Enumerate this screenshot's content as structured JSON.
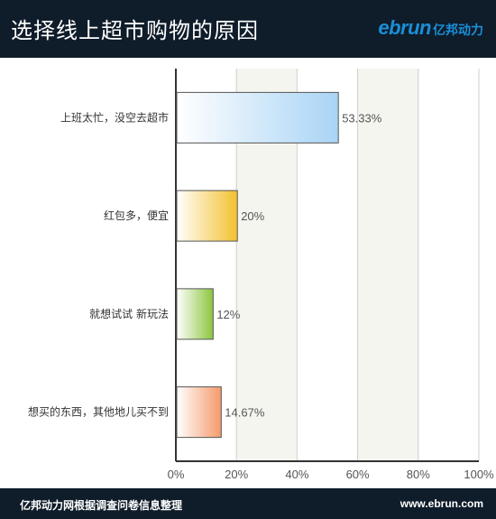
{
  "header": {
    "title": "选择线上超市购物的原因",
    "logo_word": "ebrun",
    "logo_cn": "亿邦动力"
  },
  "footer": {
    "note": "亿邦动力网根据调查问卷信息整理",
    "site": "www.ebrun.com"
  },
  "chart_data": {
    "type": "bar",
    "orientation": "horizontal",
    "title": "选择线上超市购物的原因",
    "categories": [
      "上班太忙，没空去超市",
      "红包多，便宜",
      "就想试试 新玩法",
      "想买的东西，其他地儿买不到"
    ],
    "values": [
      53.33,
      20,
      12,
      14.67
    ],
    "value_labels": [
      "53.33%",
      "20%",
      "12%",
      "14.67%"
    ],
    "xlim": [
      0,
      100
    ],
    "xticks": [
      "0%",
      "20%",
      "40%",
      "60%",
      "80%",
      "100%"
    ],
    "colors": [
      "#a9d4f5",
      "#f3c12e",
      "#8cc63f",
      "#f59a6b"
    ],
    "grid": true
  }
}
